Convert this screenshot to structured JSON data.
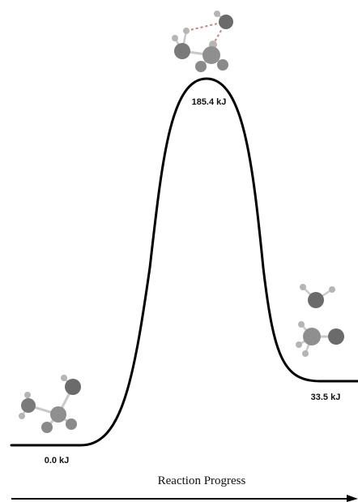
{
  "diagram": {
    "type": "reaction-energy-profile",
    "levels": {
      "reactant": {
        "label": "0.0 kJ",
        "energy_kj": 0.0
      },
      "transition_state": {
        "label": "185.4 kJ",
        "energy_kj": 185.4
      },
      "product": {
        "label": "33.5 kJ",
        "energy_kj": 33.5
      }
    },
    "x_axis_label": "Reaction Progress",
    "colors": {
      "curve": "#000000",
      "atom_dark": "#6b6b6b",
      "atom_mid": "#8f8f8f",
      "atom_light": "#b5b5b5",
      "bond": "#c9c9c9",
      "partial_bond": "#d08080"
    },
    "icons": [
      "reactant-molecule-icon",
      "transition-state-molecule-icon",
      "product-molecule-icon"
    ]
  }
}
